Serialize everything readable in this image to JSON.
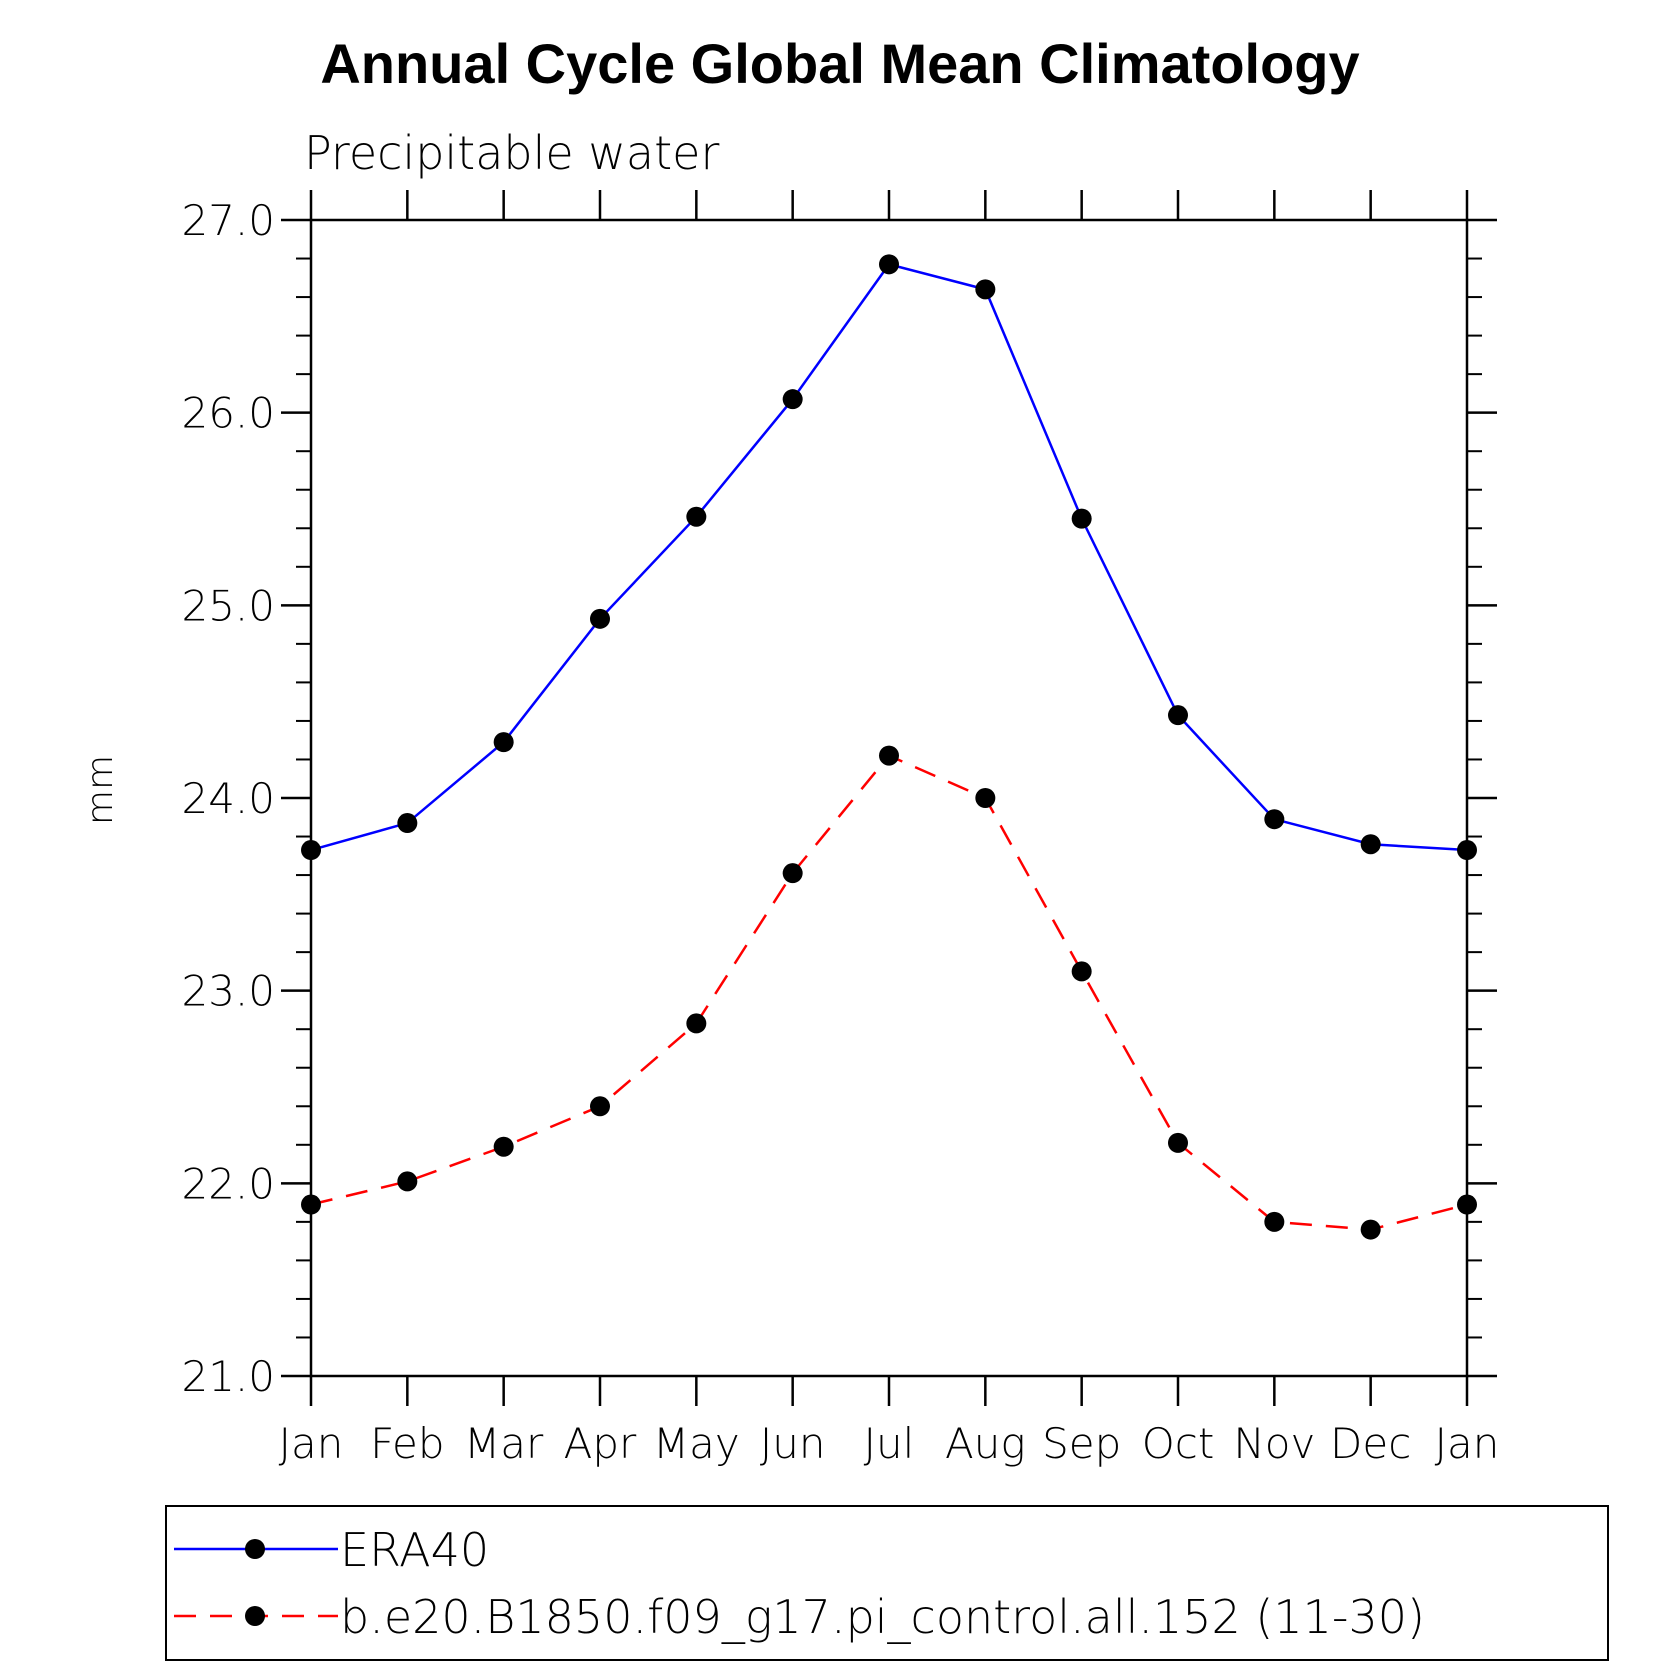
{
  "chart_data": {
    "type": "line",
    "title": "Annual Cycle Global Mean Climatology",
    "subtitle": "Precipitable water",
    "xlabel": "",
    "ylabel": "mm",
    "categories": [
      "Jan",
      "Feb",
      "Mar",
      "Apr",
      "May",
      "Jun",
      "Jul",
      "Aug",
      "Sep",
      "Oct",
      "Nov",
      "Dec",
      "Jan"
    ],
    "ylim": [
      21.0,
      27.0
    ],
    "yticks": [
      "21.0",
      "22.0",
      "23.0",
      "24.0",
      "25.0",
      "26.0",
      "27.0"
    ],
    "grid": false,
    "legend_position": "bottom",
    "series": [
      {
        "name": "ERA40",
        "color": "#0000ff",
        "line_style": "solid",
        "marker": "filled-circle",
        "values": [
          23.73,
          23.87,
          24.29,
          24.93,
          25.46,
          26.07,
          26.77,
          26.64,
          25.45,
          24.43,
          23.89,
          23.76,
          23.73
        ]
      },
      {
        "name": "b.e20.B1850.f09_g17.pi_control.all.152 (11-30)",
        "color": "#ff0000",
        "line_style": "dashed",
        "marker": "filled-circle",
        "values": [
          21.89,
          22.01,
          22.19,
          22.4,
          22.83,
          23.61,
          24.22,
          24.0,
          23.1,
          22.21,
          21.8,
          21.76,
          21.89
        ]
      }
    ]
  }
}
